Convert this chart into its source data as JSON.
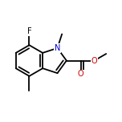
{
  "background_color": "#ffffff",
  "bond_color": "#000000",
  "atom_colors": {
    "F": "#000000",
    "N": "#0000cc",
    "O": "#cc0000",
    "C": "#000000"
  },
  "bond_width": 1.3,
  "figsize": [
    1.52,
    1.52
  ],
  "dpi": 100
}
